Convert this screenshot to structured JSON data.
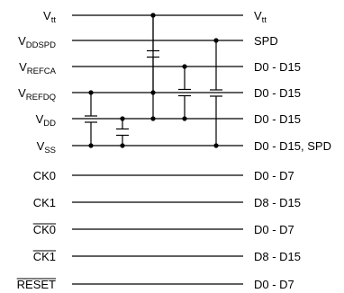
{
  "signals": [
    {
      "left": {
        "main": "V",
        "sub": "tt"
      },
      "right": {
        "main": "V",
        "sub": "tt"
      }
    },
    {
      "left": {
        "main": "V",
        "sub": "DDSPD"
      },
      "right": {
        "main": "SPD"
      }
    },
    {
      "left": {
        "main": "V",
        "sub": "REFCA"
      },
      "right": {
        "main": "D0 - D15"
      }
    },
    {
      "left": {
        "main": "V",
        "sub": "REFDQ"
      },
      "right": {
        "main": "D0 - D15"
      }
    },
    {
      "left": {
        "main": "V",
        "sub": "DD"
      },
      "right": {
        "main": "D0 - D15"
      }
    },
    {
      "left": {
        "main": "V",
        "sub": "SS"
      },
      "right": {
        "main": "D0 - D15, SPD"
      }
    },
    {
      "left": {
        "main": "CK0"
      },
      "right": {
        "main": "D0 - D7"
      }
    },
    {
      "left": {
        "main": "CK1"
      },
      "right": {
        "main": "D8 - D15"
      }
    },
    {
      "left": {
        "main": "CK0",
        "overline": true
      },
      "right": {
        "main": "D0 - D7"
      }
    },
    {
      "left": {
        "main": "CK1",
        "overline": true
      },
      "right": {
        "main": "D8 - D15"
      }
    },
    {
      "left": {
        "main": "RESET",
        "overline": true
      },
      "right": {
        "main": "D0 - D7"
      }
    }
  ],
  "connections": [
    {
      "from": 0,
      "to": 3,
      "type": "decoupling-capacitor"
    },
    {
      "from": 0,
      "to": 4,
      "type": "wire"
    },
    {
      "from": 1,
      "to": 5,
      "type": "decoupling-capacitor"
    },
    {
      "from": 2,
      "to": 4,
      "type": "decoupling-capacitor"
    },
    {
      "from": 3,
      "to": 5,
      "type": "decoupling-capacitor"
    },
    {
      "from": 4,
      "to": 5,
      "type": "decoupling-capacitor"
    }
  ]
}
